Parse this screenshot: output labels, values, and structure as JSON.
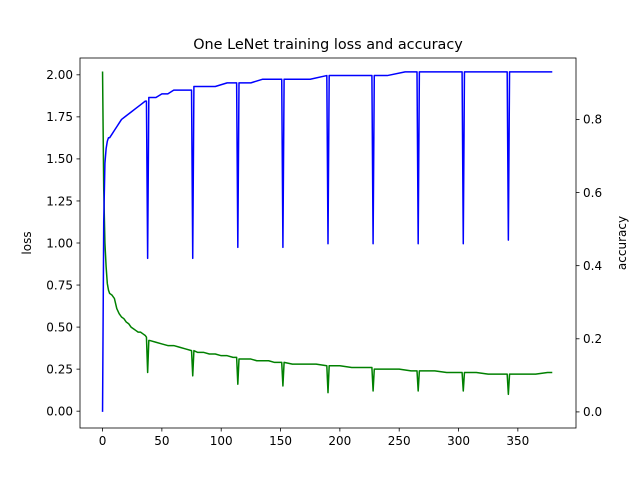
{
  "chart_data": {
    "type": "line",
    "title": "One LeNet training loss and accuracy",
    "x_range": [
      -19,
      399
    ],
    "x_ticks": [
      0,
      50,
      100,
      150,
      200,
      250,
      300,
      350
    ],
    "left_axis": {
      "label": "loss",
      "range": [
        -0.1,
        2.1
      ],
      "ticks": [
        "0.00",
        "0.25",
        "0.50",
        "0.75",
        "1.00",
        "1.25",
        "1.50",
        "1.75",
        "2.00"
      ]
    },
    "right_axis": {
      "label": "accuracy",
      "range": [
        -0.044,
        0.968
      ],
      "ticks": [
        "0.0",
        "0.2",
        "0.4",
        "0.6",
        "0.8"
      ]
    },
    "grid": false,
    "legend": "none",
    "series": [
      {
        "axis": "left",
        "color": "#008000",
        "points": [
          [
            0,
            2.02
          ],
          [
            1,
            1.32
          ],
          [
            2,
            1.0
          ],
          [
            3,
            0.86
          ],
          [
            4,
            0.76
          ],
          [
            5,
            0.72
          ],
          [
            6,
            0.7
          ],
          [
            8,
            0.69
          ],
          [
            10,
            0.67
          ],
          [
            12,
            0.61
          ],
          [
            14,
            0.58
          ],
          [
            16,
            0.56
          ],
          [
            18,
            0.55
          ],
          [
            20,
            0.53
          ],
          [
            22,
            0.52
          ],
          [
            24,
            0.5
          ],
          [
            26,
            0.49
          ],
          [
            28,
            0.48
          ],
          [
            30,
            0.47
          ],
          [
            32,
            0.47
          ],
          [
            34,
            0.46
          ],
          [
            36,
            0.45
          ],
          [
            37,
            0.44
          ],
          [
            38,
            0.23
          ],
          [
            39,
            0.42
          ],
          [
            40,
            0.42
          ],
          [
            45,
            0.41
          ],
          [
            50,
            0.4
          ],
          [
            55,
            0.39
          ],
          [
            60,
            0.39
          ],
          [
            65,
            0.38
          ],
          [
            70,
            0.37
          ],
          [
            75,
            0.36
          ],
          [
            76,
            0.21
          ],
          [
            77,
            0.36
          ],
          [
            80,
            0.35
          ],
          [
            85,
            0.35
          ],
          [
            90,
            0.34
          ],
          [
            95,
            0.34
          ],
          [
            100,
            0.33
          ],
          [
            105,
            0.33
          ],
          [
            110,
            0.32
          ],
          [
            113,
            0.32
          ],
          [
            114,
            0.16
          ],
          [
            115,
            0.31
          ],
          [
            120,
            0.31
          ],
          [
            125,
            0.31
          ],
          [
            130,
            0.3
          ],
          [
            135,
            0.3
          ],
          [
            140,
            0.3
          ],
          [
            145,
            0.29
          ],
          [
            151,
            0.29
          ],
          [
            152,
            0.15
          ],
          [
            153,
            0.29
          ],
          [
            160,
            0.28
          ],
          [
            170,
            0.28
          ],
          [
            180,
            0.28
          ],
          [
            189,
            0.27
          ],
          [
            190,
            0.11
          ],
          [
            191,
            0.27
          ],
          [
            200,
            0.27
          ],
          [
            210,
            0.26
          ],
          [
            220,
            0.26
          ],
          [
            227,
            0.26
          ],
          [
            228,
            0.12
          ],
          [
            229,
            0.25
          ],
          [
            240,
            0.25
          ],
          [
            250,
            0.25
          ],
          [
            260,
            0.24
          ],
          [
            265,
            0.24
          ],
          [
            266,
            0.12
          ],
          [
            267,
            0.24
          ],
          [
            280,
            0.24
          ],
          [
            290,
            0.23
          ],
          [
            300,
            0.23
          ],
          [
            303,
            0.23
          ],
          [
            304,
            0.12
          ],
          [
            305,
            0.23
          ],
          [
            315,
            0.23
          ],
          [
            325,
            0.22
          ],
          [
            335,
            0.22
          ],
          [
            341,
            0.22
          ],
          [
            342,
            0.1
          ],
          [
            343,
            0.22
          ],
          [
            355,
            0.22
          ],
          [
            365,
            0.22
          ],
          [
            375,
            0.23
          ],
          [
            379,
            0.23
          ]
        ]
      },
      {
        "axis": "right",
        "color": "#0000ff",
        "points": [
          [
            0,
            0.0
          ],
          [
            1,
            0.52
          ],
          [
            2,
            0.68
          ],
          [
            3,
            0.72
          ],
          [
            4,
            0.74
          ],
          [
            5,
            0.75
          ],
          [
            6,
            0.75
          ],
          [
            8,
            0.76
          ],
          [
            10,
            0.77
          ],
          [
            12,
            0.78
          ],
          [
            14,
            0.79
          ],
          [
            16,
            0.8
          ],
          [
            20,
            0.81
          ],
          [
            24,
            0.82
          ],
          [
            28,
            0.83
          ],
          [
            32,
            0.84
          ],
          [
            36,
            0.85
          ],
          [
            37,
            0.85
          ],
          [
            38,
            0.42
          ],
          [
            39,
            0.86
          ],
          [
            45,
            0.86
          ],
          [
            50,
            0.87
          ],
          [
            55,
            0.87
          ],
          [
            60,
            0.88
          ],
          [
            65,
            0.88
          ],
          [
            70,
            0.88
          ],
          [
            75,
            0.88
          ],
          [
            76,
            0.42
          ],
          [
            77,
            0.89
          ],
          [
            85,
            0.89
          ],
          [
            95,
            0.89
          ],
          [
            105,
            0.9
          ],
          [
            113,
            0.9
          ],
          [
            114,
            0.45
          ],
          [
            115,
            0.9
          ],
          [
            125,
            0.9
          ],
          [
            135,
            0.91
          ],
          [
            145,
            0.91
          ],
          [
            151,
            0.91
          ],
          [
            152,
            0.45
          ],
          [
            153,
            0.91
          ],
          [
            165,
            0.91
          ],
          [
            175,
            0.91
          ],
          [
            189,
            0.92
          ],
          [
            190,
            0.46
          ],
          [
            191,
            0.92
          ],
          [
            200,
            0.92
          ],
          [
            215,
            0.92
          ],
          [
            227,
            0.92
          ],
          [
            228,
            0.46
          ],
          [
            229,
            0.92
          ],
          [
            240,
            0.92
          ],
          [
            255,
            0.93
          ],
          [
            265,
            0.93
          ],
          [
            266,
            0.46
          ],
          [
            267,
            0.93
          ],
          [
            280,
            0.93
          ],
          [
            295,
            0.93
          ],
          [
            303,
            0.93
          ],
          [
            304,
            0.46
          ],
          [
            305,
            0.93
          ],
          [
            320,
            0.93
          ],
          [
            335,
            0.93
          ],
          [
            341,
            0.93
          ],
          [
            342,
            0.47
          ],
          [
            343,
            0.93
          ],
          [
            355,
            0.93
          ],
          [
            365,
            0.93
          ],
          [
            370,
            0.93
          ],
          [
            379,
            0.93
          ]
        ]
      }
    ]
  }
}
